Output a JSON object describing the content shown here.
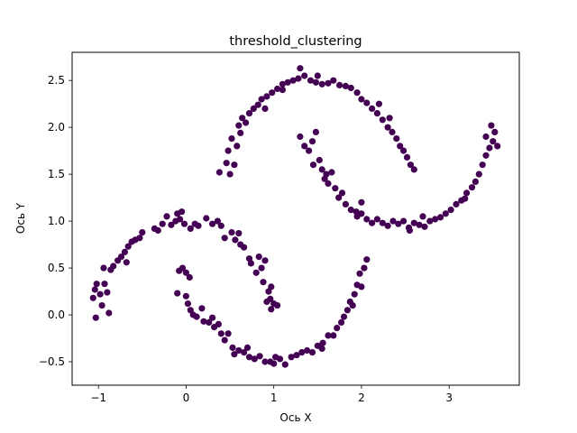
{
  "chart_data": {
    "type": "scatter",
    "title": "threshold_clustering",
    "xlabel": "Ось X",
    "ylabel": "Ось Y",
    "xlim": [
      -1.3,
      3.8
    ],
    "ylim": [
      -0.75,
      2.8
    ],
    "xticks": [
      -1,
      0,
      1,
      2,
      3
    ],
    "xtick_labels": [
      "−1",
      "0",
      "1",
      "2",
      "3"
    ],
    "yticks": [
      -0.5,
      0.0,
      0.5,
      1.0,
      1.5,
      2.0,
      2.5
    ],
    "ytick_labels": [
      "−0.5",
      "0.0",
      "0.5",
      "1.0",
      "1.5",
      "2.0",
      "2.5"
    ],
    "grid": false,
    "marker_color": "#440154",
    "marker": "circle",
    "series": [
      {
        "points": [
          [
            -1.03,
            -0.03
          ],
          [
            -1.06,
            0.18
          ],
          [
            -1.04,
            0.27
          ],
          [
            -1.02,
            0.33
          ],
          [
            -0.98,
            0.22
          ],
          [
            -0.96,
            0.1
          ],
          [
            -0.93,
            0.33
          ],
          [
            -0.9,
            0.24
          ],
          [
            -0.88,
            0.02
          ],
          [
            -0.94,
            0.5
          ],
          [
            -0.86,
            0.48
          ],
          [
            -0.83,
            0.52
          ],
          [
            -0.78,
            0.58
          ],
          [
            -0.74,
            0.62
          ],
          [
            -0.7,
            0.67
          ],
          [
            -0.68,
            0.56
          ],
          [
            -0.66,
            0.73
          ],
          [
            -0.62,
            0.78
          ],
          [
            -0.58,
            0.8
          ],
          [
            -0.53,
            0.82
          ],
          [
            -0.5,
            0.88
          ],
          [
            -0.36,
            0.92
          ],
          [
            -0.32,
            0.9
          ],
          [
            -0.27,
            0.97
          ],
          [
            -0.22,
            1.05
          ],
          [
            -0.17,
            0.96
          ],
          [
            -0.12,
            1.0
          ],
          [
            -0.07,
            1.02
          ],
          [
            -0.1,
            1.08
          ],
          [
            -0.05,
            1.1
          ],
          [
            -0.02,
            0.97
          ],
          [
            0.05,
            0.92
          ],
          [
            0.1,
            0.97
          ],
          [
            0.14,
            0.95
          ],
          [
            0.23,
            1.03
          ],
          [
            0.3,
            0.97
          ],
          [
            0.36,
            1.0
          ],
          [
            0.4,
            0.95
          ],
          [
            0.44,
            0.82
          ],
          [
            0.52,
            0.88
          ],
          [
            0.56,
            0.8
          ],
          [
            0.6,
            0.87
          ],
          [
            0.62,
            0.75
          ],
          [
            0.66,
            0.72
          ],
          [
            0.72,
            0.6
          ],
          [
            0.74,
            0.55
          ],
          [
            0.8,
            0.45
          ],
          [
            0.83,
            0.62
          ],
          [
            0.86,
            0.5
          ],
          [
            0.9,
            0.58
          ],
          [
            0.88,
            0.35
          ],
          [
            0.94,
            0.25
          ],
          [
            0.97,
            0.3
          ],
          [
            0.92,
            0.14
          ],
          [
            0.97,
            0.06
          ],
          [
            1.0,
            0.12
          ],
          [
            1.04,
            0.1
          ],
          [
            0.96,
            0.17
          ],
          [
            -0.08,
            0.47
          ],
          [
            -0.04,
            0.5
          ],
          [
            0.0,
            0.45
          ],
          [
            0.04,
            0.4
          ],
          [
            -0.1,
            0.23
          ],
          [
            0.0,
            0.2
          ],
          [
            0.05,
            0.05
          ],
          [
            0.02,
            0.12
          ],
          [
            0.08,
            0.0
          ],
          [
            0.12,
            -0.02
          ],
          [
            0.18,
            0.07
          ],
          [
            0.2,
            -0.07
          ],
          [
            0.26,
            -0.08
          ],
          [
            0.32,
            -0.13
          ],
          [
            0.37,
            -0.1
          ],
          [
            0.4,
            -0.2
          ],
          [
            0.44,
            -0.27
          ],
          [
            0.48,
            -0.2
          ],
          [
            0.53,
            -0.35
          ],
          [
            0.55,
            -0.42
          ],
          [
            0.6,
            -0.38
          ],
          [
            0.66,
            -0.4
          ],
          [
            0.72,
            -0.45
          ],
          [
            0.78,
            -0.47
          ],
          [
            0.84,
            -0.44
          ],
          [
            0.9,
            -0.5
          ],
          [
            0.96,
            -0.5
          ],
          [
            1.02,
            -0.45
          ],
          [
            1.07,
            -0.47
          ],
          [
            1.13,
            -0.53
          ],
          [
            1.2,
            -0.45
          ],
          [
            1.26,
            -0.43
          ],
          [
            1.32,
            -0.4
          ],
          [
            1.38,
            -0.38
          ],
          [
            1.44,
            -0.4
          ],
          [
            1.5,
            -0.33
          ],
          [
            1.56,
            -0.3
          ],
          [
            1.62,
            -0.22
          ],
          [
            1.68,
            -0.22
          ],
          [
            1.72,
            -0.14
          ],
          [
            1.77,
            -0.08
          ],
          [
            1.8,
            -0.02
          ],
          [
            1.84,
            0.05
          ],
          [
            1.87,
            0.14
          ],
          [
            1.92,
            0.22
          ],
          [
            1.95,
            0.32
          ],
          [
            1.98,
            0.44
          ],
          [
            2.03,
            0.5
          ],
          [
            2.06,
            0.59
          ],
          [
            2.0,
            0.3
          ],
          [
            1.9,
            0.1
          ],
          [
            1.55,
            -0.36
          ],
          [
            1.0,
            -0.52
          ],
          [
            0.7,
            -0.35
          ],
          [
            0.3,
            -0.03
          ],
          [
            0.38,
            1.52
          ],
          [
            0.46,
            1.62
          ],
          [
            0.48,
            1.75
          ],
          [
            0.5,
            1.5
          ],
          [
            0.52,
            1.88
          ],
          [
            0.55,
            1.6
          ],
          [
            0.58,
            1.8
          ],
          [
            0.6,
            2.02
          ],
          [
            0.62,
            1.94
          ],
          [
            0.64,
            2.1
          ],
          [
            0.68,
            2.05
          ],
          [
            0.72,
            2.15
          ],
          [
            0.77,
            2.2
          ],
          [
            0.82,
            2.24
          ],
          [
            0.86,
            2.3
          ],
          [
            0.92,
            2.33
          ],
          [
            0.98,
            2.37
          ],
          [
            1.04,
            2.41
          ],
          [
            1.1,
            2.46
          ],
          [
            1.16,
            2.48
          ],
          [
            1.22,
            2.5
          ],
          [
            1.28,
            2.52
          ],
          [
            1.35,
            2.55
          ],
          [
            1.42,
            2.5
          ],
          [
            1.48,
            2.48
          ],
          [
            1.55,
            2.46
          ],
          [
            1.62,
            2.47
          ],
          [
            1.68,
            2.5
          ],
          [
            1.75,
            2.45
          ],
          [
            1.82,
            2.44
          ],
          [
            1.88,
            2.42
          ],
          [
            1.95,
            2.37
          ],
          [
            2.0,
            2.3
          ],
          [
            2.06,
            2.26
          ],
          [
            2.12,
            2.2
          ],
          [
            2.18,
            2.15
          ],
          [
            2.24,
            2.08
          ],
          [
            2.3,
            2.0
          ],
          [
            2.35,
            1.95
          ],
          [
            2.4,
            1.88
          ],
          [
            2.44,
            1.8
          ],
          [
            2.48,
            1.75
          ],
          [
            2.52,
            1.68
          ],
          [
            2.56,
            1.6
          ],
          [
            2.6,
            1.55
          ],
          [
            1.3,
            2.63
          ],
          [
            1.5,
            2.55
          ],
          [
            0.9,
            2.2
          ],
          [
            1.1,
            2.4
          ],
          [
            2.2,
            2.25
          ],
          [
            2.32,
            2.1
          ],
          [
            1.3,
            1.9
          ],
          [
            1.35,
            1.8
          ],
          [
            1.4,
            1.75
          ],
          [
            1.44,
            1.85
          ],
          [
            1.48,
            1.95
          ],
          [
            1.52,
            1.65
          ],
          [
            1.55,
            1.55
          ],
          [
            1.58,
            1.45
          ],
          [
            1.62,
            1.4
          ],
          [
            1.66,
            1.52
          ],
          [
            1.7,
            1.35
          ],
          [
            1.74,
            1.25
          ],
          [
            1.78,
            1.3
          ],
          [
            1.82,
            1.18
          ],
          [
            1.88,
            1.12
          ],
          [
            1.94,
            1.1
          ],
          [
            2.0,
            1.08
          ],
          [
            2.06,
            1.02
          ],
          [
            2.12,
            0.98
          ],
          [
            2.18,
            1.02
          ],
          [
            2.24,
            0.98
          ],
          [
            2.3,
            0.95
          ],
          [
            2.36,
            1.0
          ],
          [
            2.42,
            0.97
          ],
          [
            2.48,
            1.0
          ],
          [
            2.54,
            0.93
          ],
          [
            2.6,
            0.98
          ],
          [
            2.66,
            0.96
          ],
          [
            2.72,
            0.94
          ],
          [
            2.78,
            1.0
          ],
          [
            2.84,
            1.02
          ],
          [
            2.9,
            1.04
          ],
          [
            2.96,
            1.08
          ],
          [
            3.02,
            1.12
          ],
          [
            3.08,
            1.18
          ],
          [
            3.14,
            1.22
          ],
          [
            3.2,
            1.3
          ],
          [
            3.26,
            1.36
          ],
          [
            3.3,
            1.42
          ],
          [
            3.34,
            1.5
          ],
          [
            3.38,
            1.6
          ],
          [
            3.42,
            1.7
          ],
          [
            3.46,
            1.78
          ],
          [
            3.5,
            1.85
          ],
          [
            3.52,
            1.95
          ],
          [
            3.48,
            2.02
          ],
          [
            3.55,
            1.8
          ],
          [
            3.42,
            1.9
          ],
          [
            3.18,
            1.24
          ],
          [
            2.55,
            0.9
          ],
          [
            1.6,
            1.5
          ],
          [
            1.45,
            1.6
          ],
          [
            2.0,
            1.2
          ],
          [
            1.95,
            1.05
          ],
          [
            2.7,
            1.05
          ]
        ]
      }
    ]
  }
}
